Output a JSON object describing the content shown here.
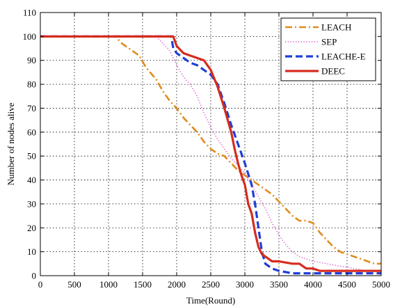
{
  "chart_data": {
    "type": "line",
    "xlabel": "Time(Round)",
    "ylabel": "Number of nodes alive",
    "xlim": [
      0,
      5000
    ],
    "ylim": [
      0,
      110
    ],
    "xticks": [
      "0",
      "500",
      "1000",
      "1500",
      "2000",
      "2500",
      "3000",
      "3500",
      "4000",
      "4500",
      "5000"
    ],
    "yticks": [
      "0",
      "10",
      "20",
      "30",
      "40",
      "50",
      "60",
      "70",
      "80",
      "90",
      "100",
      "110"
    ],
    "grid": true,
    "legend_position": "top-right",
    "series": [
      {
        "name": "LEACH",
        "color": "#e08a1e",
        "dash": "dashdot",
        "points": [
          [
            0,
            100
          ],
          [
            1100,
            100
          ],
          [
            1200,
            97
          ],
          [
            1300,
            95
          ],
          [
            1450,
            92
          ],
          [
            1550,
            87
          ],
          [
            1700,
            82
          ],
          [
            1800,
            77
          ],
          [
            1900,
            73
          ],
          [
            2000,
            70
          ],
          [
            2100,
            66
          ],
          [
            2200,
            63
          ],
          [
            2300,
            60
          ],
          [
            2400,
            56
          ],
          [
            2500,
            53
          ],
          [
            2600,
            51
          ],
          [
            2700,
            50
          ],
          [
            2800,
            47
          ],
          [
            2900,
            44
          ],
          [
            3000,
            42
          ],
          [
            3100,
            40
          ],
          [
            3200,
            38
          ],
          [
            3300,
            36
          ],
          [
            3400,
            34
          ],
          [
            3500,
            31
          ],
          [
            3600,
            28
          ],
          [
            3700,
            25
          ],
          [
            3800,
            23
          ],
          [
            3900,
            23
          ],
          [
            4000,
            22
          ],
          [
            4100,
            18
          ],
          [
            4200,
            15
          ],
          [
            4300,
            12
          ],
          [
            4400,
            10
          ],
          [
            4500,
            9
          ],
          [
            4600,
            8
          ],
          [
            4700,
            7
          ],
          [
            4800,
            6
          ],
          [
            4900,
            5
          ],
          [
            5000,
            5
          ]
        ]
      },
      {
        "name": "SEP",
        "color": "#d946c8",
        "dash": "dotted",
        "points": [
          [
            0,
            100
          ],
          [
            1700,
            100
          ],
          [
            1800,
            97
          ],
          [
            1900,
            94
          ],
          [
            2000,
            88
          ],
          [
            2100,
            83
          ],
          [
            2200,
            80
          ],
          [
            2300,
            75
          ],
          [
            2400,
            68
          ],
          [
            2500,
            62
          ],
          [
            2600,
            57
          ],
          [
            2700,
            53
          ],
          [
            2800,
            49
          ],
          [
            2900,
            46
          ],
          [
            3000,
            43
          ],
          [
            3100,
            38
          ],
          [
            3200,
            33
          ],
          [
            3300,
            28
          ],
          [
            3400,
            22
          ],
          [
            3500,
            17
          ],
          [
            3600,
            13
          ],
          [
            3700,
            10
          ],
          [
            3800,
            8
          ],
          [
            3900,
            7
          ],
          [
            4000,
            6
          ],
          [
            4200,
            5
          ],
          [
            4400,
            4
          ],
          [
            4600,
            3
          ],
          [
            4800,
            2
          ],
          [
            5000,
            2
          ]
        ]
      },
      {
        "name": "LEACHE-E",
        "color": "#1f3fd6",
        "dash": "dashed",
        "points": [
          [
            0,
            100
          ],
          [
            1920,
            100
          ],
          [
            1950,
            95
          ],
          [
            2000,
            93
          ],
          [
            2100,
            91
          ],
          [
            2200,
            89
          ],
          [
            2300,
            88
          ],
          [
            2400,
            86
          ],
          [
            2500,
            84
          ],
          [
            2600,
            80
          ],
          [
            2700,
            72
          ],
          [
            2800,
            63
          ],
          [
            2900,
            55
          ],
          [
            3000,
            47
          ],
          [
            3100,
            38
          ],
          [
            3150,
            30
          ],
          [
            3200,
            20
          ],
          [
            3250,
            10
          ],
          [
            3300,
            5
          ],
          [
            3400,
            3
          ],
          [
            3500,
            2
          ],
          [
            3700,
            1
          ],
          [
            3800,
            1
          ],
          [
            4000,
            1
          ],
          [
            5000,
            1
          ]
        ]
      },
      {
        "name": "DEEC",
        "color": "#d62b1e",
        "dash": "solid",
        "points": [
          [
            0,
            100
          ],
          [
            1950,
            100
          ],
          [
            2000,
            96
          ],
          [
            2100,
            93
          ],
          [
            2200,
            92
          ],
          [
            2300,
            91
          ],
          [
            2400,
            90
          ],
          [
            2500,
            86
          ],
          [
            2600,
            79
          ],
          [
            2700,
            70
          ],
          [
            2800,
            60
          ],
          [
            2850,
            53
          ],
          [
            2900,
            47
          ],
          [
            2950,
            42
          ],
          [
            3000,
            38
          ],
          [
            3050,
            30
          ],
          [
            3100,
            26
          ],
          [
            3150,
            18
          ],
          [
            3200,
            12
          ],
          [
            3250,
            9
          ],
          [
            3300,
            8
          ],
          [
            3400,
            6
          ],
          [
            3500,
            6
          ],
          [
            3700,
            5
          ],
          [
            3800,
            5
          ],
          [
            3900,
            3
          ],
          [
            4000,
            3
          ],
          [
            4100,
            2
          ],
          [
            4300,
            2
          ],
          [
            5000,
            2
          ]
        ]
      }
    ]
  }
}
